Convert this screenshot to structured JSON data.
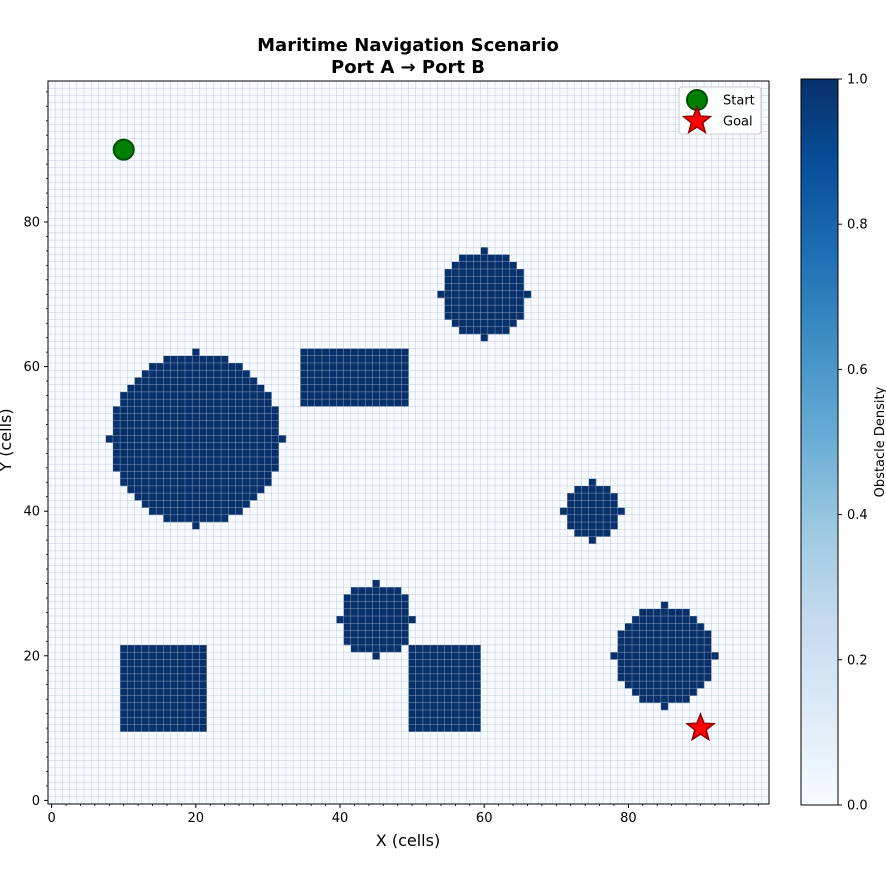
{
  "chart_data": {
    "type": "heatmap",
    "title": "Maritime Navigation Scenario",
    "subtitle": "Port A → Port B",
    "xlabel": "X (cells)",
    "ylabel": "Y (cells)",
    "grid_size": [
      100,
      100
    ],
    "xlim": [
      0,
      99
    ],
    "ylim": [
      0,
      99
    ],
    "xticks": [
      0,
      20,
      40,
      60,
      80
    ],
    "yticks": [
      0,
      20,
      40,
      60,
      80
    ],
    "grid": true,
    "colormap": "Blues",
    "colorbar": {
      "label": "Obstacle Density",
      "range": [
        0,
        1
      ],
      "ticks": [
        "0.0",
        "0.2",
        "0.4",
        "0.6",
        "0.8",
        "1.0"
      ]
    },
    "obstacles": [
      {
        "shape": "circle",
        "cx": 20,
        "cy": 50,
        "r": 12,
        "value": 1.0
      },
      {
        "shape": "circle",
        "cx": 60,
        "cy": 70,
        "r": 6,
        "value": 1.0
      },
      {
        "shape": "circle",
        "cx": 45,
        "cy": 25,
        "r": 5,
        "value": 1.0
      },
      {
        "shape": "circle",
        "cx": 75,
        "cy": 40,
        "r": 4,
        "value": 1.0
      },
      {
        "shape": "circle",
        "cx": 85,
        "cy": 20,
        "r": 7,
        "value": 1.0
      },
      {
        "shape": "rect",
        "x0": 35,
        "x1": 49,
        "y0": 55,
        "y1": 62,
        "value": 1.0
      },
      {
        "shape": "rect",
        "x0": 10,
        "x1": 21,
        "y0": 10,
        "y1": 21,
        "value": 1.0
      },
      {
        "shape": "rect",
        "x0": 50,
        "x1": 59,
        "y0": 10,
        "y1": 21,
        "value": 1.0
      }
    ],
    "markers": [
      {
        "name": "Start",
        "x": 10,
        "y": 90,
        "symbol": "circle",
        "color": "#008000",
        "edge": "#005000"
      },
      {
        "name": "Goal",
        "x": 90,
        "y": 10,
        "symbol": "star",
        "color": "#ff0000",
        "edge": "#8b0000"
      }
    ],
    "legend_position": "top-right",
    "colors": {
      "background_cell": "#f7fbff",
      "obstacle_cell": "#08306b",
      "grid_line": "#b0bccf"
    }
  }
}
